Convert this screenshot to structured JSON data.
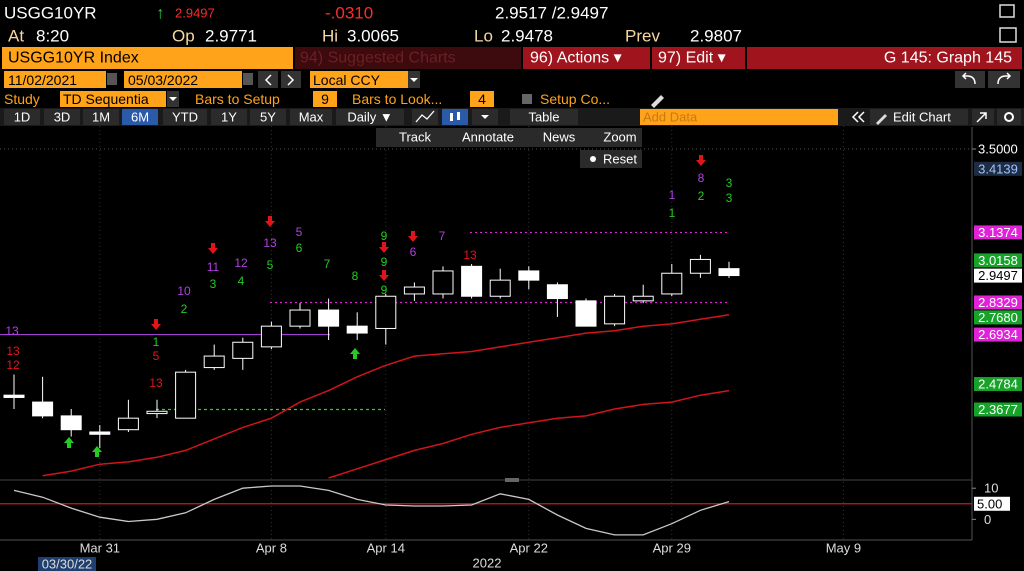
{
  "ui": {
    "ticker": "USGG10YR",
    "arrow": "↑",
    "last": "2.9497",
    "change": "-.0310",
    "bid_ask": "2.9517 /2.9497",
    "time_label": "At",
    "time": "8:20",
    "open_label": "Op",
    "open": "2.9771",
    "high_label": "Hi",
    "high": "3.0065",
    "low_label": "Lo",
    "low": "2.9478",
    "prev_label": "Prev",
    "prev": "2.9807",
    "security": "USGG10YR Index",
    "suggested": "94) Suggested Charts",
    "actions": "96) Actions ▾",
    "edit": "97) Edit ▾",
    "graph": "G 145: Graph 145",
    "start_date": "11/02/2021",
    "end_date": "05/03/2022",
    "currency": "Local CCY",
    "study_label": "Study",
    "study": "TD Sequentia",
    "bars_setup_label": "Bars to Setup",
    "bars_setup": "9",
    "bars_look_label": "Bars to Look...",
    "bars_look": "4",
    "setup_co": "Setup Co...",
    "periods": [
      "1D",
      "3D",
      "1M",
      "6M",
      "YTD",
      "1Y",
      "5Y",
      "Max"
    ],
    "frequency": "Daily ▼",
    "table": "Table",
    "add_data": "Add Data",
    "edit_chart": "Edit Chart",
    "tools": [
      "Track",
      "Annotate",
      "News",
      "Zoom"
    ],
    "reset": "Reset"
  },
  "chart_data": {
    "type": "candlestick",
    "color": "#ffffff",
    "categories": [
      null,
      null,
      null,
      "Mar 31",
      null,
      null,
      null,
      null,
      null,
      "Apr 8",
      null,
      null,
      null,
      "Apr 14",
      null,
      null,
      null,
      null,
      "Apr 22",
      null,
      null,
      null,
      null,
      "Apr 29",
      null,
      null,
      null,
      null,
      null,
      "May 9",
      null,
      null,
      null,
      null
    ],
    "open": [
      2.43,
      2.4,
      2.34,
      2.27,
      2.28,
      2.35,
      2.33,
      2.55,
      2.59,
      2.64,
      2.73,
      2.8,
      2.73,
      2.72,
      2.87,
      2.87,
      2.99,
      2.86,
      2.97,
      2.91,
      2.84,
      2.74,
      2.84,
      2.87,
      2.96,
      2.98,
      null,
      null,
      null,
      null,
      null,
      null,
      null,
      null
    ],
    "high": [
      2.52,
      2.51,
      2.37,
      2.3,
      2.41,
      2.41,
      2.54,
      2.65,
      2.68,
      2.75,
      2.83,
      2.85,
      2.79,
      2.87,
      2.92,
      2.99,
      3.0,
      2.98,
      2.99,
      2.92,
      2.85,
      2.87,
      2.91,
      3.0,
      3.04,
      3.01,
      null,
      null,
      null,
      null,
      null,
      null,
      null,
      null
    ],
    "low": [
      2.37,
      2.33,
      2.25,
      2.2,
      2.27,
      2.33,
      2.33,
      2.54,
      2.54,
      2.63,
      2.72,
      2.67,
      2.67,
      2.65,
      2.84,
      2.85,
      2.85,
      2.85,
      2.89,
      2.77,
      2.73,
      2.73,
      2.83,
      2.86,
      2.94,
      2.94,
      null,
      null,
      null,
      null,
      null,
      null,
      null,
      null
    ],
    "close": [
      2.42,
      2.34,
      2.28,
      2.26,
      2.33,
      2.36,
      2.53,
      2.6,
      2.66,
      2.73,
      2.8,
      2.73,
      2.7,
      2.86,
      2.9,
      2.97,
      2.86,
      2.93,
      2.93,
      2.85,
      2.73,
      2.86,
      2.86,
      2.96,
      3.02,
      2.95,
      null,
      null,
      null,
      null,
      null,
      null,
      null,
      null
    ],
    "lines": [
      {
        "color": "#d0141b",
        "values": [
          null,
          2.08,
          2.1,
          2.13,
          2.14,
          2.16,
          2.19,
          2.24,
          2.29,
          2.33,
          2.4,
          2.45,
          2.51,
          2.56,
          2.6,
          2.61,
          2.62,
          2.64,
          2.66,
          2.68,
          2.7,
          2.71,
          2.73,
          2.74,
          2.76,
          2.78,
          null,
          null,
          null,
          null,
          null,
          null,
          null,
          null
        ]
      },
      {
        "color": "#d0141b",
        "values": [
          null,
          null,
          null,
          null,
          null,
          null,
          null,
          null,
          null,
          null,
          null,
          2.07,
          2.11,
          2.15,
          2.19,
          2.22,
          2.26,
          2.29,
          2.31,
          2.33,
          2.34,
          2.37,
          2.39,
          2.4,
          2.43,
          2.45,
          null,
          null,
          null,
          null,
          null,
          null,
          null,
          null
        ]
      }
    ],
    "ylim": [
      2.07,
      3.6
    ],
    "yticks": [
      {
        "value": 3.5,
        "label": "3.5000"
      }
    ],
    "grid": true,
    "price_tags": [
      {
        "value": 3.4139,
        "color": "#1e2c44"
      },
      {
        "value": 3.1374,
        "color": "#e023d8"
      },
      {
        "value": 3.0158,
        "color": "#17a32a"
      },
      {
        "value": 2.9497,
        "color": "#ffffff"
      },
      {
        "value": 2.8329,
        "color": "#e023d8"
      },
      {
        "value": 2.768,
        "label": "2.7680",
        "color": "#17a32a"
      },
      {
        "value": 2.6934,
        "color": "#e023d8"
      },
      {
        "value": 2.4784,
        "color": "#17a32a"
      },
      {
        "value": 2.3677,
        "color": "#17a32a"
      }
    ],
    "annotations": [
      {
        "text": "13",
        "color": "#b040e0"
      },
      {
        "text": "13",
        "color": "#e0141b"
      },
      {
        "text": "12",
        "color": "#e0141b"
      },
      {
        "text": "1",
        "color": "#22cc22"
      },
      {
        "text": "5",
        "color": "#e0141b"
      },
      {
        "text": "13",
        "color": "#e0141b"
      },
      {
        "text": "10",
        "color": "#b040e0"
      },
      {
        "text": "2",
        "color": "#22cc22"
      },
      {
        "text": "11",
        "color": "#b040e0"
      },
      {
        "text": "3",
        "color": "#22cc22"
      },
      {
        "text": "12",
        "color": "#b040e0"
      },
      {
        "text": "4",
        "color": "#22cc22"
      },
      {
        "text": "13",
        "color": "#b040e0"
      },
      {
        "text": "5",
        "color": "#22cc22"
      },
      {
        "text": "5",
        "color": "#b040e0"
      },
      {
        "text": "6",
        "color": "#22cc22"
      },
      {
        "text": "7",
        "color": "#22cc22"
      },
      {
        "text": "8",
        "color": "#22cc22"
      },
      {
        "text": "9",
        "color": "#22cc22"
      },
      {
        "text": "9",
        "color": "#22cc22"
      },
      {
        "text": "9",
        "color": "#22cc22"
      },
      {
        "text": "6",
        "color": "#b040e0"
      },
      {
        "text": "7",
        "color": "#b040e0"
      },
      {
        "text": "13",
        "color": "#e0141b"
      },
      {
        "text": "1",
        "color": "#b040e0"
      },
      {
        "text": "1",
        "color": "#22cc22"
      },
      {
        "text": "8",
        "color": "#b040e0"
      },
      {
        "text": "2",
        "color": "#22cc22"
      },
      {
        "text": "3",
        "color": "#22cc22"
      },
      {
        "text": "3",
        "color": "#22cc22"
      }
    ],
    "xlabel": "2022",
    "cursor_date": "03/30/22",
    "indicator": {
      "color": "#c8c8c8",
      "values": [
        9.3,
        7.1,
        3.6,
        0.7,
        -0.7,
        0,
        2.1,
        6.4,
        10,
        10.7,
        10.7,
        9.3,
        6.4,
        4.6,
        4.3,
        4.3,
        4.6,
        8.2,
        6.4,
        1.4,
        -2.9,
        -5,
        -5,
        -1.4,
        2.9,
        5.7,
        null,
        null,
        null,
        null,
        null,
        null,
        null,
        null
      ],
      "ylim": [
        -6,
        12
      ],
      "yticks": [
        0,
        10
      ],
      "level": {
        "value": 5,
        "label": "5.00"
      },
      "level_color": "#d0141b"
    }
  }
}
